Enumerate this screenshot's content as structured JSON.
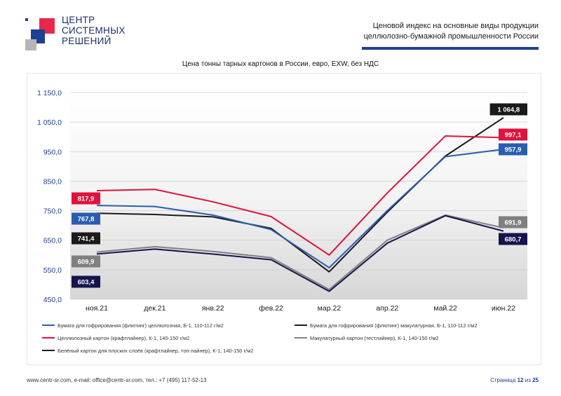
{
  "header": {
    "logo_lines": [
      "ЦЕНТР",
      "СИСТЕМНЫХ",
      "РЕШЕНИЙ"
    ],
    "title_line1": "Ценовой индекс на основные виды продукции",
    "title_line2": "целлюлозно-бумажной промышленности России",
    "accent_color": "#1f3f94",
    "logo_red": "#e8274b",
    "logo_blue": "#1f3f94",
    "logo_gray": "#b5b5b5"
  },
  "footer": {
    "contacts": "www.centr-sr.com, e-mail: office@centr-sr.com, тел.: +7 (495) 117-52-13",
    "page_prefix": "Страница",
    "page_current": "12",
    "page_sep": "из",
    "page_total": "25"
  },
  "chart_data": {
    "type": "line",
    "title": "Цена тонны тарных картонов в России, евро, EXW, без НДС",
    "categories": [
      "ноя.21",
      "дек.21",
      "янв.22",
      "фев.22",
      "мар.22",
      "апр.22",
      "май.22",
      "июн.22"
    ],
    "y_ticks": [
      "1 150,0",
      "1 050,0",
      "950,0",
      "850,0",
      "750,0",
      "650,0",
      "550,0",
      "450,0"
    ],
    "ylim": [
      450,
      1150
    ],
    "grid": true,
    "legend_position": "bottom",
    "series": [
      {
        "name": "Бумага для гофрирования (флютинг) целлюлозная, Б-1, 110-112 г/м2",
        "color": "#2a5db0",
        "values": [
          767.8,
          764,
          735,
          686,
          557,
          750,
          933,
          957.9
        ]
      },
      {
        "name": "Бумага для гофрирования (флютинг) макулатурная, Б-1, 110-112 г/м2",
        "color": "#15154d",
        "values": [
          603.4,
          620,
          603,
          584,
          477,
          640,
          733,
          680.7
        ]
      },
      {
        "name": "Целлюлозный картон (крафтлайнер), К-1, 140-150 г/м2",
        "color": "#e0123c",
        "values": [
          817.9,
          822,
          780,
          730,
          600,
          810,
          1003,
          997.1
        ]
      },
      {
        "name": "Макулатурный картон (тестлайнер), К-1, 140-150 г/м2",
        "color": "#808080",
        "values": [
          609.9,
          628,
          612,
          591,
          483,
          650,
          735,
          691.9
        ]
      },
      {
        "name": "Белёный картон для плоских слоёв (крафтлайнер, топ-лайнер), К-1, 140-150 г/м2",
        "color": "#1a1a1a",
        "values": [
          741.4,
          737,
          729,
          690,
          543,
          745,
          935,
          1064.8
        ]
      }
    ],
    "data_labels": {
      "start": [
        {
          "series": 2,
          "text": "817,9"
        },
        {
          "series": 0,
          "text": "767,8"
        },
        {
          "series": 4,
          "text": "741,4"
        },
        {
          "series": 3,
          "text": "609,9"
        },
        {
          "series": 1,
          "text": "603,4"
        }
      ],
      "end": [
        {
          "series": 4,
          "text": "1 064,8"
        },
        {
          "series": 2,
          "text": "997,1"
        },
        {
          "series": 0,
          "text": "957,9"
        },
        {
          "series": 3,
          "text": "691,9"
        },
        {
          "series": 1,
          "text": "680,7"
        }
      ]
    }
  }
}
